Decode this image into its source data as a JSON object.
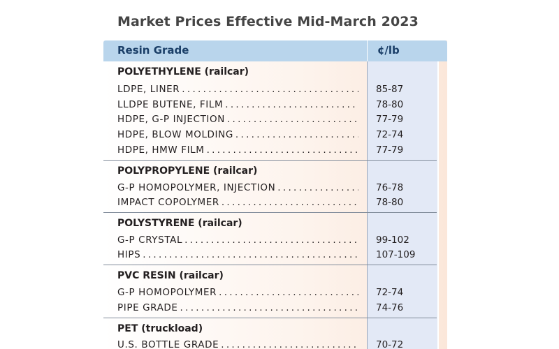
{
  "title": "Market Prices Effective Mid-March 2023",
  "header": {
    "label": "Resin Grade",
    "price": "¢/lb"
  },
  "groups": [
    {
      "title": "POLYETHYLENE (railcar)",
      "items": [
        {
          "name": "LDPE, LINER",
          "price": "85-87"
        },
        {
          "name": "LLDPE BUTENE, FILM",
          "price": "78-80"
        },
        {
          "name": "HDPE, G-P INJECTION",
          "price": "77-79"
        },
        {
          "name": "HDPE, BLOW MOLDING",
          "price": "72-74"
        },
        {
          "name": "HDPE, HMW FILM",
          "price": "77-79"
        }
      ]
    },
    {
      "title": "POLYPROPYLENE (railcar)",
      "items": [
        {
          "name": "G-P HOMOPOLYMER, INJECTION",
          "price": "76-78"
        },
        {
          "name": "IMPACT COPOLYMER",
          "price": "78-80"
        }
      ]
    },
    {
      "title": "POLYSTYRENE (railcar)",
      "items": [
        {
          "name": "G-P CRYSTAL",
          "price": "99-102"
        },
        {
          "name": "HIPS",
          "price": "107-109"
        }
      ]
    },
    {
      "title": "PVC RESIN (railcar)",
      "items": [
        {
          "name": "G-P HOMOPOLYMER",
          "price": "72-74"
        },
        {
          "name": "PIPE GRADE",
          "price": "74-76"
        }
      ]
    },
    {
      "title": "PET (truckload)",
      "items": [
        {
          "name": "U.S. BOTTLE GRADE",
          "price": "70-72"
        }
      ]
    }
  ]
}
